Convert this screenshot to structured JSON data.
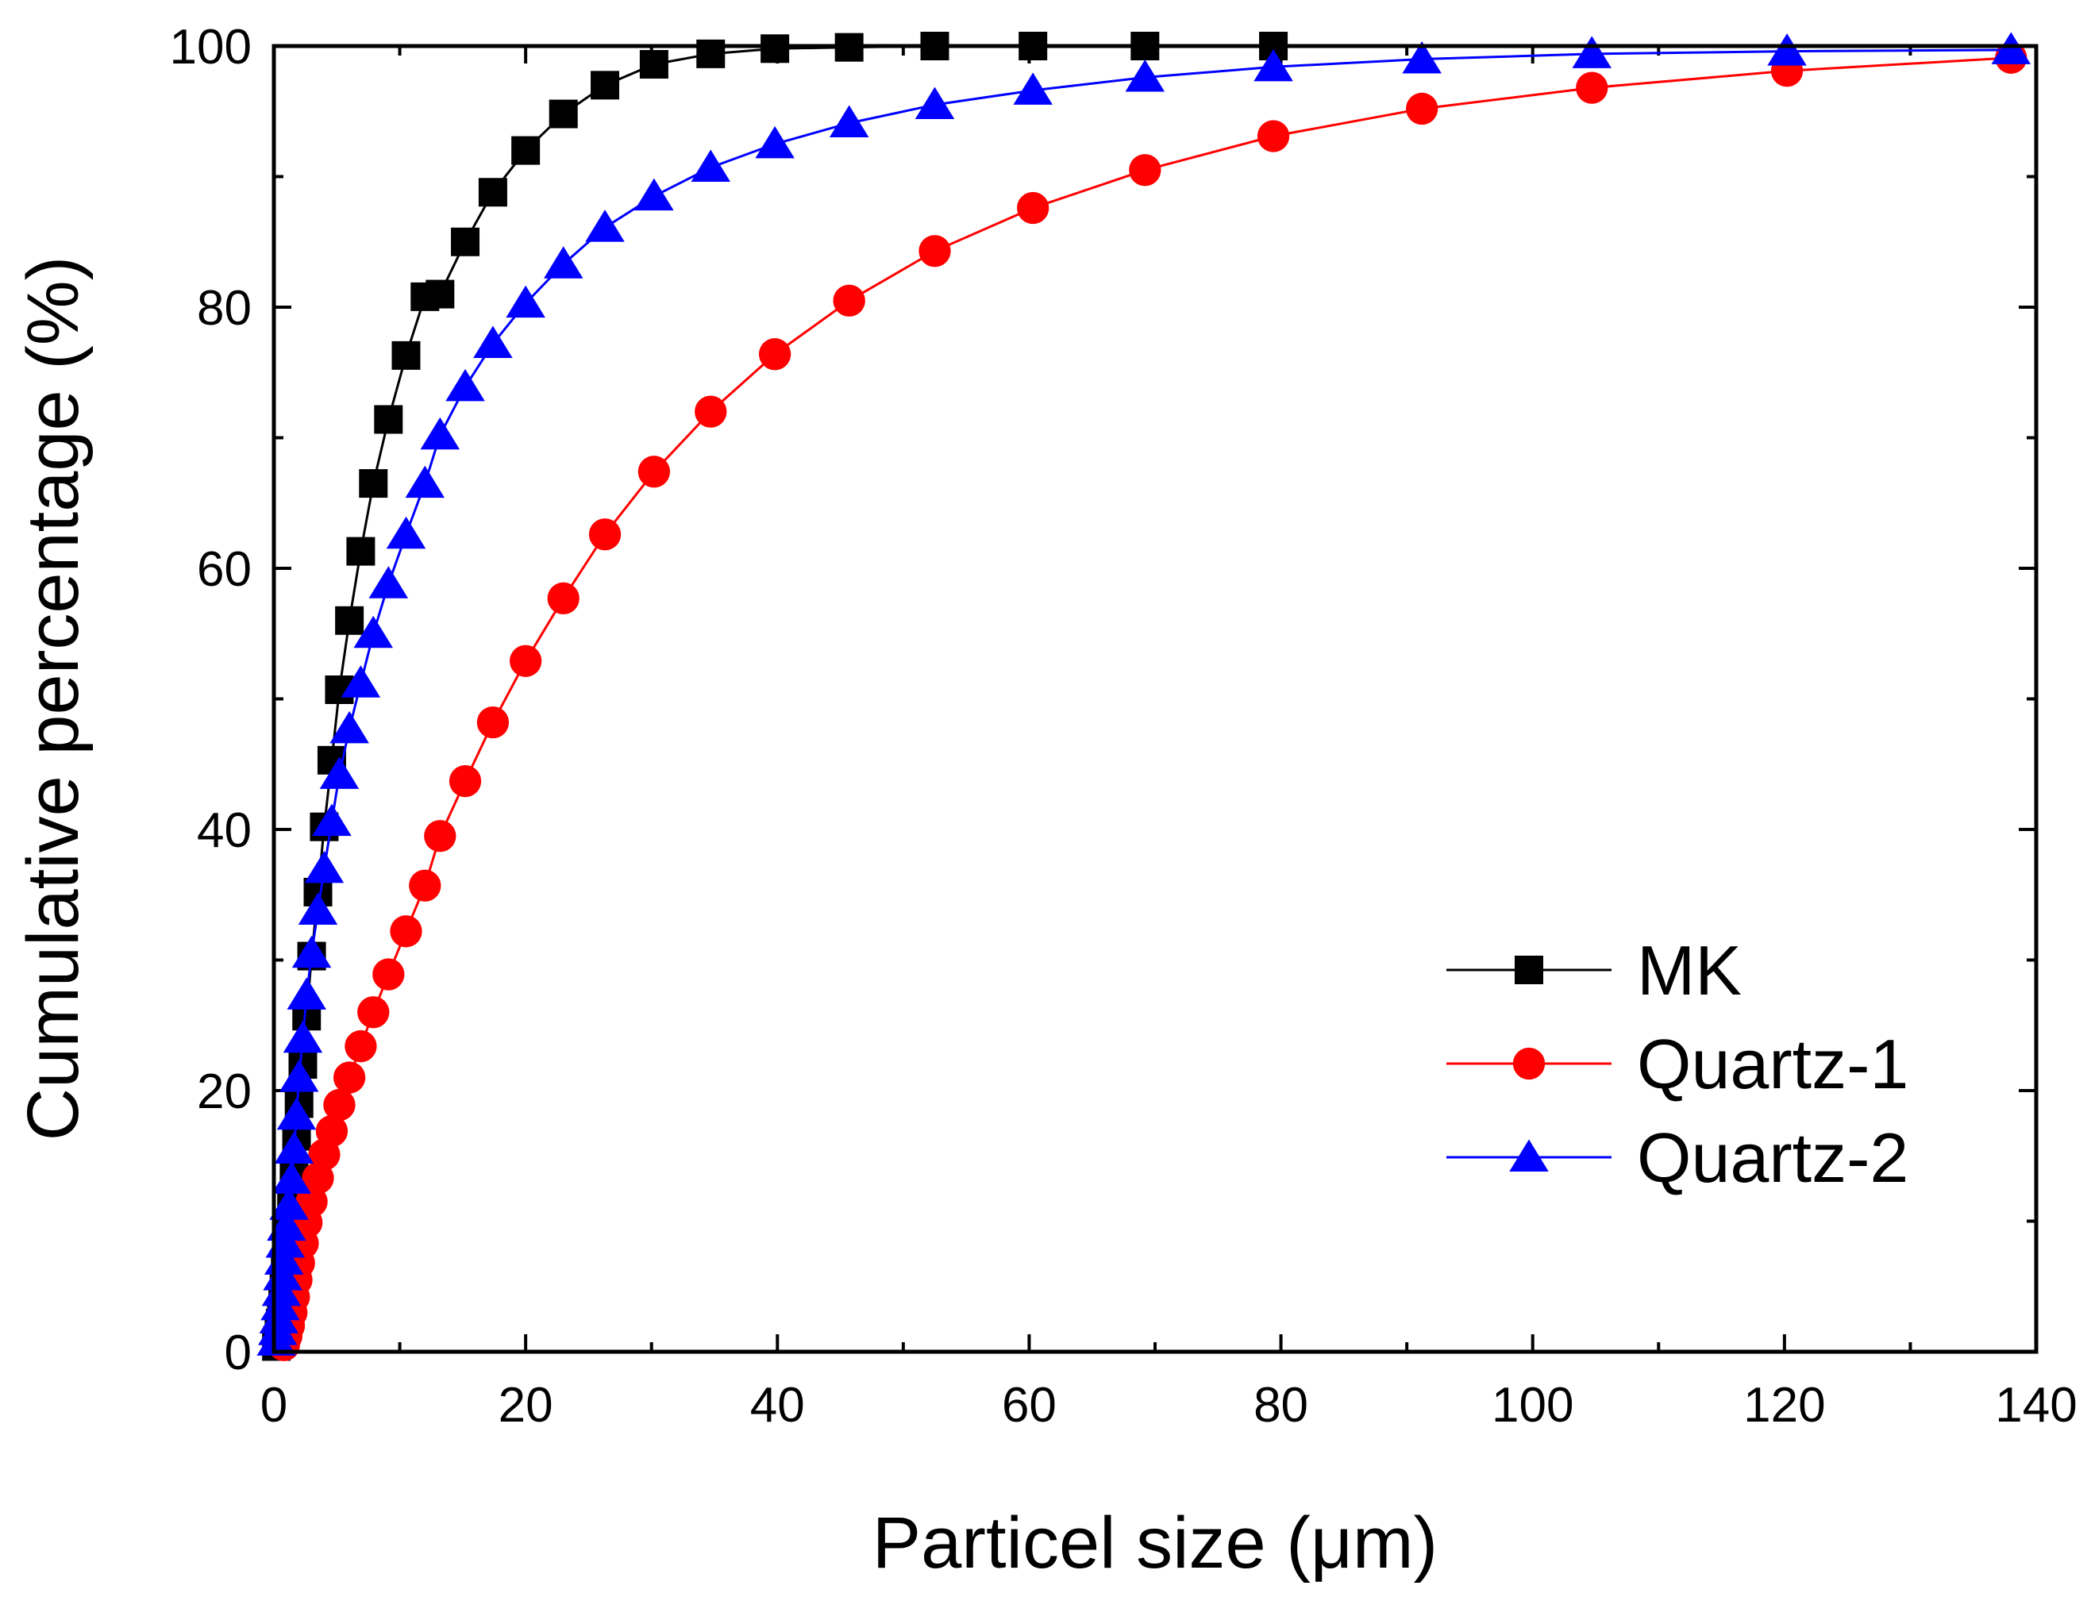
{
  "chart_data": {
    "type": "line",
    "title": "",
    "xlabel": "Particel size (μm)",
    "ylabel": "Cumulative percentage (%)",
    "xlim": [
      0,
      140
    ],
    "ylim": [
      0,
      100
    ],
    "x_ticks": [
      0,
      20,
      40,
      60,
      80,
      100,
      120,
      140
    ],
    "y_ticks": [
      0,
      20,
      40,
      60,
      80,
      100
    ],
    "x_tick_labels": [
      "0",
      "20",
      "40",
      "60",
      "80",
      "100",
      "120",
      "140"
    ],
    "y_tick_labels": [
      "0",
      "20",
      "40",
      "60",
      "80",
      "100"
    ],
    "grid": false,
    "legend_position": "bottom-right",
    "series": [
      {
        "name": "MK",
        "color": "#000000",
        "marker": "square",
        "x": [
          0.2,
          0.3,
          0.4,
          0.5,
          0.6,
          0.7,
          0.8,
          0.9,
          1.0,
          1.2,
          1.4,
          1.6,
          1.8,
          2.0,
          2.3,
          2.6,
          3.0,
          3.5,
          4.0,
          4.6,
          5.2,
          6.0,
          6.9,
          7.9,
          9.1,
          10.5,
          12.0,
          13.2,
          15.2,
          17.4,
          20.0,
          23.0,
          26.3,
          30.2,
          34.7,
          39.8,
          45.7,
          52.5,
          60.3,
          69.2,
          79.4
        ],
        "y": [
          0.4,
          0.9,
          1.5,
          2.2,
          3.0,
          4.0,
          5.0,
          6.2,
          7.5,
          9.5,
          11.7,
          14.0,
          16.5,
          19.0,
          22.0,
          25.7,
          30.3,
          35.2,
          40.2,
          45.3,
          50.7,
          56.0,
          61.3,
          66.5,
          71.4,
          76.3,
          80.8,
          81.0,
          85.0,
          88.8,
          92.0,
          94.8,
          97.0,
          98.6,
          99.4,
          99.8,
          99.9,
          100.0,
          100.0,
          100.0,
          100.0
        ]
      },
      {
        "name": "Quartz-1",
        "color": "#ff0000",
        "marker": "circle",
        "x": [
          0.8,
          1.0,
          1.2,
          1.4,
          1.6,
          1.8,
          2.0,
          2.3,
          2.6,
          3.0,
          3.5,
          4.0,
          4.6,
          5.2,
          6.0,
          6.9,
          7.9,
          9.1,
          10.5,
          12.0,
          13.2,
          15.2,
          17.4,
          20.0,
          23.0,
          26.3,
          30.2,
          34.7,
          39.8,
          45.7,
          52.5,
          60.3,
          69.2,
          79.4,
          91.2,
          104.7,
          120.2,
          138.0
        ],
        "y": [
          0.5,
          1.2,
          2.0,
          3.0,
          4.2,
          5.5,
          6.8,
          8.3,
          9.9,
          11.5,
          13.3,
          15.1,
          16.9,
          18.9,
          21.0,
          23.4,
          26.0,
          28.9,
          32.2,
          35.7,
          39.5,
          43.7,
          48.2,
          52.9,
          57.7,
          62.6,
          67.4,
          72.0,
          76.4,
          80.5,
          84.3,
          87.6,
          90.5,
          93.1,
          95.2,
          96.8,
          98.1,
          99.1
        ]
      },
      {
        "name": "Quartz-2",
        "color": "#0000ff",
        "marker": "triangle",
        "x": [
          0.2,
          0.3,
          0.4,
          0.5,
          0.6,
          0.7,
          0.8,
          0.9,
          1.0,
          1.2,
          1.4,
          1.6,
          1.8,
          2.0,
          2.3,
          2.6,
          3.0,
          3.5,
          4.0,
          4.6,
          5.2,
          6.0,
          6.9,
          7.9,
          9.1,
          10.5,
          12.0,
          13.2,
          15.2,
          17.4,
          20.0,
          23.0,
          26.3,
          30.2,
          34.7,
          39.8,
          45.7,
          52.5,
          60.3,
          69.2,
          79.4,
          91.2,
          104.7,
          120.2,
          138.0
        ],
        "y": [
          0.8,
          1.6,
          2.5,
          3.5,
          4.6,
          5.8,
          7.0,
          8.3,
          9.6,
          11.2,
          13.2,
          15.5,
          18.1,
          21.0,
          24.0,
          27.3,
          30.5,
          33.8,
          37.0,
          40.6,
          44.2,
          47.7,
          51.2,
          55.0,
          58.8,
          62.6,
          66.5,
          70.2,
          73.9,
          77.2,
          80.3,
          83.3,
          86.1,
          88.5,
          90.7,
          92.5,
          94.1,
          95.5,
          96.6,
          97.6,
          98.4,
          99.0,
          99.4,
          99.6,
          99.7
        ]
      }
    ]
  }
}
